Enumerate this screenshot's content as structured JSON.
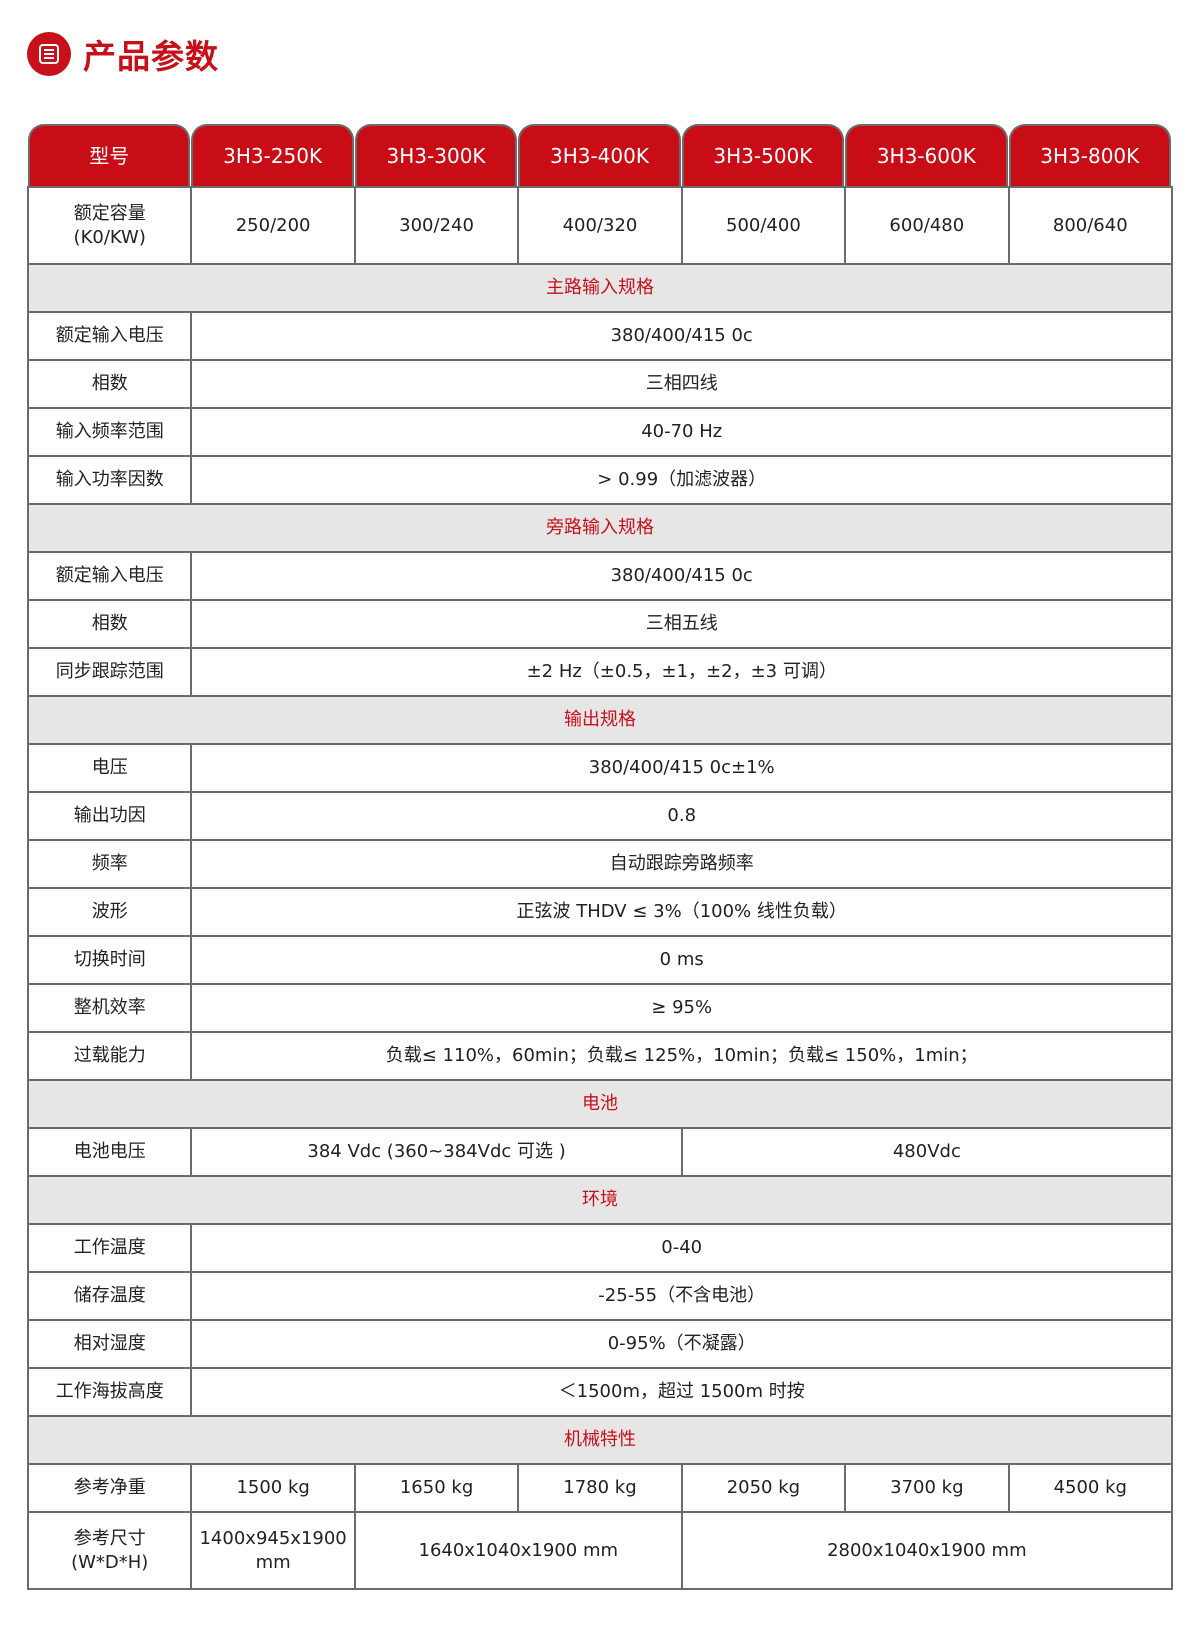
{
  "page": {
    "title": "产品参数",
    "icon": "document-list-icon",
    "accent_color": "#c8101a",
    "header_bg": "#c80d17",
    "section_bg": "#e6e6e6"
  },
  "table": {
    "header": [
      "型号",
      "3H3-250K",
      "3H3-300K",
      "3H3-400K",
      "3H3-500K",
      "3H3-600K",
      "3H3-800K"
    ],
    "rows": [
      {
        "type": "row",
        "tall": true,
        "label": "额定容量\n(K0/KW)",
        "cells": [
          {
            "v": "250/200",
            "span": 1
          },
          {
            "v": "300/240",
            "span": 1
          },
          {
            "v": "400/320",
            "span": 1
          },
          {
            "v": "500/400",
            "span": 1
          },
          {
            "v": "600/480",
            "span": 1
          },
          {
            "v": "800/640",
            "span": 1
          }
        ]
      },
      {
        "type": "section",
        "label": "主路输入规格"
      },
      {
        "type": "row",
        "label": "额定输入电压",
        "cells": [
          {
            "v": "380/400/415 0c",
            "span": 6
          }
        ]
      },
      {
        "type": "row",
        "label": "相数",
        "cells": [
          {
            "v": "三相四线",
            "span": 6
          }
        ]
      },
      {
        "type": "row",
        "label": "输入频率范围",
        "cells": [
          {
            "v": "40-70 Hz",
            "span": 6
          }
        ]
      },
      {
        "type": "row",
        "label": "输入功率因数",
        "cells": [
          {
            "v": "> 0.99（加滤波器）",
            "span": 6
          }
        ]
      },
      {
        "type": "section",
        "label": "旁路输入规格"
      },
      {
        "type": "row",
        "label": "额定输入电压",
        "cells": [
          {
            "v": "380/400/415 0c",
            "span": 6
          }
        ]
      },
      {
        "type": "row",
        "label": "相数",
        "cells": [
          {
            "v": "三相五线",
            "span": 6
          }
        ]
      },
      {
        "type": "row",
        "label": "同步跟踪范围",
        "cells": [
          {
            "v": "±2 Hz（±0.5，±1，±2，±3 可调）",
            "span": 6
          }
        ]
      },
      {
        "type": "section",
        "label": "输出规格"
      },
      {
        "type": "row",
        "label": "电压",
        "cells": [
          {
            "v": "380/400/415 0c±1%",
            "span": 6
          }
        ]
      },
      {
        "type": "row",
        "label": "输出功因",
        "cells": [
          {
            "v": "0.8",
            "span": 6
          }
        ]
      },
      {
        "type": "row",
        "label": "频率",
        "cells": [
          {
            "v": "自动跟踪旁路频率",
            "span": 6
          }
        ]
      },
      {
        "type": "row",
        "label": "波形",
        "cells": [
          {
            "v": "正弦波 THDV ≤ 3%（100% 线性负载）",
            "span": 6
          }
        ]
      },
      {
        "type": "row",
        "label": "切换时间",
        "cells": [
          {
            "v": "0 ms",
            "span": 6
          }
        ]
      },
      {
        "type": "row",
        "label": "整机效率",
        "cells": [
          {
            "v": "≥ 95%",
            "span": 6
          }
        ]
      },
      {
        "type": "row",
        "label": "过载能力",
        "cells": [
          {
            "v": "负载≤ 110%，60min；负载≤ 125%，10min；负载≤ 150%，1min；",
            "span": 6
          }
        ]
      },
      {
        "type": "section",
        "label": "电池"
      },
      {
        "type": "row",
        "label": "电池电压",
        "cells": [
          {
            "v": "384 Vdc (360~384Vdc 可选 )",
            "span": 3
          },
          {
            "v": "480Vdc",
            "span": 3
          }
        ]
      },
      {
        "type": "section",
        "label": "环境"
      },
      {
        "type": "row",
        "label": "工作温度",
        "cells": [
          {
            "v": "0-40",
            "span": 6
          }
        ]
      },
      {
        "type": "row",
        "label": "储存温度",
        "cells": [
          {
            "v": "-25-55（不含电池）",
            "span": 6
          }
        ]
      },
      {
        "type": "row",
        "label": "相对湿度",
        "cells": [
          {
            "v": "0-95%（不凝露）",
            "span": 6
          }
        ]
      },
      {
        "type": "row",
        "label": "工作海拔高度",
        "cells": [
          {
            "v": "＜1500m，超过 1500m 时按",
            "span": 6
          }
        ]
      },
      {
        "type": "section",
        "label": "机械特性"
      },
      {
        "type": "row",
        "label": "参考净重",
        "cells": [
          {
            "v": "1500 kg",
            "span": 1
          },
          {
            "v": "1650 kg",
            "span": 1
          },
          {
            "v": "1780 kg",
            "span": 1
          },
          {
            "v": "2050 kg",
            "span": 1
          },
          {
            "v": "3700 kg",
            "span": 1
          },
          {
            "v": "4500 kg",
            "span": 1
          }
        ]
      },
      {
        "type": "row",
        "tall": true,
        "label": "参考尺寸\n(W*D*H)",
        "cells": [
          {
            "v": "1400x945x1900\nmm",
            "span": 1
          },
          {
            "v": "1640x1040x1900 mm",
            "span": 2
          },
          {
            "v": "2800x1040x1900 mm",
            "span": 3
          }
        ]
      }
    ]
  }
}
